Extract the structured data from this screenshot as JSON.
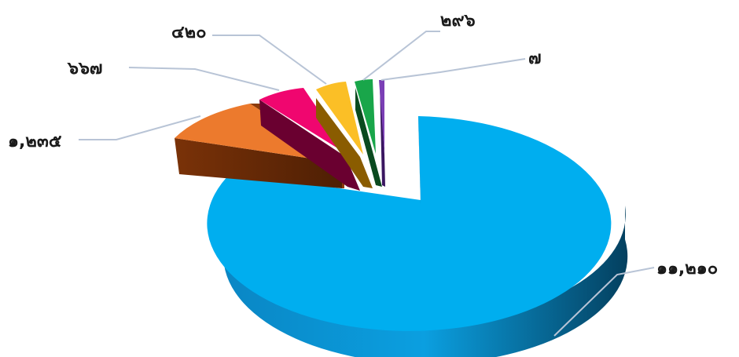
{
  "chart_data": {
    "type": "pie",
    "style": "3d-exploded",
    "title": "",
    "legend": "none",
    "slices": [
      {
        "value": 11210,
        "label": "๑๑,๒๑๐",
        "color": "#00aeef",
        "side": "#00558a"
      },
      {
        "value": 1235,
        "label": "๑,๒๓๕",
        "color": "#ec7a2d",
        "side": "#6e2c05"
      },
      {
        "value": 667,
        "label": "๖๖๗",
        "color": "#f0066f",
        "side": "#6a0030"
      },
      {
        "value": 420,
        "label": "๔๒๐",
        "color": "#fbbf26",
        "side": "#8a5c00"
      },
      {
        "value": 296,
        "label": "๒๙๖",
        "color": "#19a64a",
        "side": "#0a4a1f"
      },
      {
        "value": 7,
        "label": "๗",
        "color": "#7b3fb5",
        "side": "#3a1660"
      }
    ]
  }
}
